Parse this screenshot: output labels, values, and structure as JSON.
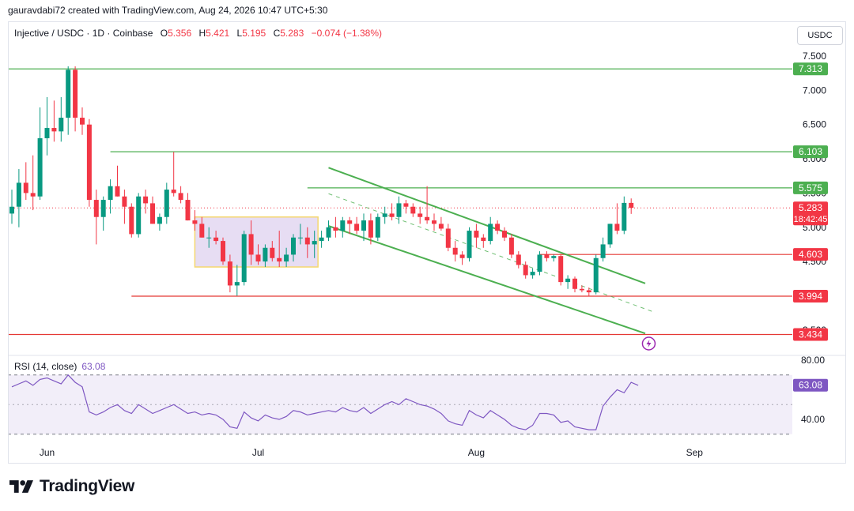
{
  "header": {
    "attribution": "gauravdabi72 created with TradingView.com, Aug 24, 2026 10:47 UTC+5:30"
  },
  "legend": {
    "symbol": "Injective / USDC · 1D · Coinbase",
    "open_label": "O",
    "open": "5.356",
    "high_label": "H",
    "high": "5.421",
    "low_label": "L",
    "low": "5.195",
    "close_label": "C",
    "close": "5.283",
    "change": "−0.074 (−1.38%)"
  },
  "currency_button": "USDC",
  "rsi_legend": {
    "label": "RSI (14, close)",
    "value": "63.08"
  },
  "footer": {
    "brand": "TradingView"
  },
  "colors": {
    "up": "#089981",
    "down": "#f23645",
    "green_line": "#4caf50",
    "red_line": "#e53935",
    "rsi": "#7e57c2",
    "range_fill": "#e1d5f0",
    "range_border": "#f5d76e"
  },
  "chart_data": {
    "type": "candlestick",
    "price_axis": {
      "ticks": [
        "7.500",
        "7.000",
        "6.500",
        "6.000",
        "5.500",
        "5.000",
        "4.500",
        "4.000",
        "3.500"
      ],
      "ylim": [
        3.25,
        7.65
      ]
    },
    "x_axis": {
      "labels": [
        {
          "label": "Jun",
          "day": 5
        },
        {
          "label": "Jul",
          "day": 35
        },
        {
          "label": "Aug",
          "day": 66
        },
        {
          "label": "Sep",
          "day": 97
        }
      ]
    },
    "price_labels": [
      {
        "value": "7.313",
        "color": "#4caf50"
      },
      {
        "value": "6.103",
        "color": "#4caf50"
      },
      {
        "value": "5.575",
        "color": "#4caf50"
      },
      {
        "value": "5.283",
        "time": "18:42:45",
        "color": "#f23645"
      },
      {
        "value": "4.603",
        "color": "#f23645"
      },
      {
        "value": "3.994",
        "color": "#f23645"
      },
      {
        "value": "3.434",
        "color": "#f23645"
      }
    ],
    "horizontal_levels": [
      {
        "price": 7.313,
        "from_day": -1,
        "color": "#4caf50"
      },
      {
        "price": 6.103,
        "from_day": 14,
        "color": "#4caf50"
      },
      {
        "price": 5.575,
        "from_day": 42,
        "color": "#4caf50"
      },
      {
        "price": 4.603,
        "from_day": 75,
        "color": "#e53935"
      },
      {
        "price": 3.994,
        "from_day": 17,
        "color": "#e53935"
      },
      {
        "price": 3.434,
        "from_day": -8,
        "color": "#e53935"
      }
    ],
    "range_box": {
      "from_day": 26,
      "to_day": 43.5,
      "top": 5.15,
      "bottom": 4.42
    },
    "channel": [
      {
        "x1_day": 45,
        "y1": 5.87,
        "x2_day": 90,
        "y2": 4.18,
        "dashed": false
      },
      {
        "x1_day": 45,
        "y1": 5.49,
        "x2_day": 91,
        "y2": 3.77,
        "dashed": true
      },
      {
        "x1_day": 45,
        "y1": 5.02,
        "x2_day": 90,
        "y2": 3.45,
        "dashed": false
      }
    ],
    "candles": [
      {
        "o": 5.2,
        "h": 5.55,
        "l": 5.05,
        "c": 5.3
      },
      {
        "o": 5.3,
        "h": 5.85,
        "l": 5.0,
        "c": 5.65
      },
      {
        "o": 5.65,
        "h": 5.95,
        "l": 5.4,
        "c": 5.5
      },
      {
        "o": 5.5,
        "h": 6.05,
        "l": 5.25,
        "c": 5.45
      },
      {
        "o": 5.45,
        "h": 6.75,
        "l": 5.4,
        "c": 6.3
      },
      {
        "o": 6.3,
        "h": 6.9,
        "l": 6.05,
        "c": 6.45
      },
      {
        "o": 6.45,
        "h": 6.85,
        "l": 6.25,
        "c": 6.4
      },
      {
        "o": 6.4,
        "h": 6.9,
        "l": 6.25,
        "c": 6.6
      },
      {
        "o": 6.6,
        "h": 7.35,
        "l": 6.35,
        "c": 7.3
      },
      {
        "o": 7.3,
        "h": 7.35,
        "l": 6.4,
        "c": 6.6
      },
      {
        "o": 6.6,
        "h": 6.75,
        "l": 6.35,
        "c": 6.5
      },
      {
        "o": 6.5,
        "h": 6.58,
        "l": 5.3,
        "c": 5.4
      },
      {
        "o": 5.4,
        "h": 5.55,
        "l": 4.75,
        "c": 5.15
      },
      {
        "o": 5.15,
        "h": 5.45,
        "l": 4.95,
        "c": 5.4
      },
      {
        "o": 5.4,
        "h": 5.7,
        "l": 5.2,
        "c": 5.6
      },
      {
        "o": 5.6,
        "h": 5.9,
        "l": 5.45,
        "c": 5.45
      },
      {
        "o": 5.45,
        "h": 5.55,
        "l": 5.05,
        "c": 5.3
      },
      {
        "o": 5.3,
        "h": 5.35,
        "l": 4.85,
        "c": 4.9
      },
      {
        "o": 4.9,
        "h": 5.5,
        "l": 4.85,
        "c": 5.45
      },
      {
        "o": 5.45,
        "h": 5.55,
        "l": 5.2,
        "c": 5.35
      },
      {
        "o": 5.35,
        "h": 5.45,
        "l": 5.05,
        "c": 5.05
      },
      {
        "o": 5.05,
        "h": 5.2,
        "l": 4.95,
        "c": 5.15
      },
      {
        "o": 5.15,
        "h": 5.65,
        "l": 5.05,
        "c": 5.55
      },
      {
        "o": 5.55,
        "h": 6.1,
        "l": 5.45,
        "c": 5.5
      },
      {
        "o": 5.5,
        "h": 5.6,
        "l": 5.35,
        "c": 5.4
      },
      {
        "o": 5.4,
        "h": 5.5,
        "l": 5.1,
        "c": 5.1
      },
      {
        "o": 5.1,
        "h": 5.25,
        "l": 4.95,
        "c": 5.05
      },
      {
        "o": 5.05,
        "h": 5.15,
        "l": 4.85,
        "c": 4.85
      },
      {
        "o": 4.85,
        "h": 5.0,
        "l": 4.7,
        "c": 4.85
      },
      {
        "o": 4.85,
        "h": 4.95,
        "l": 4.75,
        "c": 4.8
      },
      {
        "o": 4.8,
        "h": 4.85,
        "l": 4.45,
        "c": 4.5
      },
      {
        "o": 4.5,
        "h": 4.6,
        "l": 4.05,
        "c": 4.15
      },
      {
        "o": 4.15,
        "h": 4.45,
        "l": 4.0,
        "c": 4.2
      },
      {
        "o": 4.2,
        "h": 4.95,
        "l": 4.15,
        "c": 4.9
      },
      {
        "o": 4.9,
        "h": 5.1,
        "l": 4.45,
        "c": 4.6
      },
      {
        "o": 4.6,
        "h": 4.75,
        "l": 4.45,
        "c": 4.5
      },
      {
        "o": 4.5,
        "h": 4.75,
        "l": 4.42,
        "c": 4.7
      },
      {
        "o": 4.7,
        "h": 4.8,
        "l": 4.5,
        "c": 4.55
      },
      {
        "o": 4.55,
        "h": 4.95,
        "l": 4.42,
        "c": 4.5
      },
      {
        "o": 4.5,
        "h": 4.7,
        "l": 4.42,
        "c": 4.6
      },
      {
        "o": 4.6,
        "h": 4.9,
        "l": 4.5,
        "c": 4.85
      },
      {
        "o": 4.85,
        "h": 5.05,
        "l": 4.75,
        "c": 4.85
      },
      {
        "o": 4.85,
        "h": 5.0,
        "l": 4.55,
        "c": 4.75
      },
      {
        "o": 4.75,
        "h": 4.95,
        "l": 4.55,
        "c": 4.8
      },
      {
        "o": 4.8,
        "h": 4.95,
        "l": 4.7,
        "c": 4.85
      },
      {
        "o": 4.85,
        "h": 5.1,
        "l": 4.8,
        "c": 5.0
      },
      {
        "o": 5.0,
        "h": 5.15,
        "l": 4.85,
        "c": 4.95
      },
      {
        "o": 4.95,
        "h": 5.15,
        "l": 4.85,
        "c": 5.1
      },
      {
        "o": 5.1,
        "h": 5.15,
        "l": 4.9,
        "c": 5.05
      },
      {
        "o": 5.05,
        "h": 5.15,
        "l": 4.9,
        "c": 4.95
      },
      {
        "o": 4.95,
        "h": 5.2,
        "l": 4.8,
        "c": 5.1
      },
      {
        "o": 5.1,
        "h": 5.2,
        "l": 4.75,
        "c": 4.85
      },
      {
        "o": 4.85,
        "h": 5.2,
        "l": 4.8,
        "c": 5.15
      },
      {
        "o": 5.15,
        "h": 5.3,
        "l": 5.05,
        "c": 5.2
      },
      {
        "o": 5.2,
        "h": 5.35,
        "l": 5.1,
        "c": 5.15
      },
      {
        "o": 5.15,
        "h": 5.45,
        "l": 5.05,
        "c": 5.35
      },
      {
        "o": 5.35,
        "h": 5.4,
        "l": 5.2,
        "c": 5.3
      },
      {
        "o": 5.3,
        "h": 5.35,
        "l": 5.15,
        "c": 5.2
      },
      {
        "o": 5.2,
        "h": 5.3,
        "l": 5.05,
        "c": 5.15
      },
      {
        "o": 5.15,
        "h": 5.6,
        "l": 5.05,
        "c": 5.1
      },
      {
        "o": 5.1,
        "h": 5.2,
        "l": 4.95,
        "c": 5.05
      },
      {
        "o": 5.05,
        "h": 5.15,
        "l": 4.95,
        "c": 4.98
      },
      {
        "o": 4.98,
        "h": 5.05,
        "l": 4.65,
        "c": 4.7
      },
      {
        "o": 4.7,
        "h": 4.8,
        "l": 4.5,
        "c": 4.6
      },
      {
        "o": 4.6,
        "h": 4.65,
        "l": 4.45,
        "c": 4.55
      },
      {
        "o": 4.55,
        "h": 5.0,
        "l": 4.5,
        "c": 4.95
      },
      {
        "o": 4.95,
        "h": 5.05,
        "l": 4.7,
        "c": 4.85
      },
      {
        "o": 4.85,
        "h": 4.9,
        "l": 4.7,
        "c": 4.8
      },
      {
        "o": 4.8,
        "h": 5.15,
        "l": 4.75,
        "c": 5.05
      },
      {
        "o": 5.05,
        "h": 5.1,
        "l": 4.9,
        "c": 4.95
      },
      {
        "o": 4.95,
        "h": 5.0,
        "l": 4.8,
        "c": 4.85
      },
      {
        "o": 4.85,
        "h": 4.9,
        "l": 4.55,
        "c": 4.6
      },
      {
        "o": 4.6,
        "h": 4.65,
        "l": 4.4,
        "c": 4.45
      },
      {
        "o": 4.45,
        "h": 4.5,
        "l": 4.25,
        "c": 4.3
      },
      {
        "o": 4.3,
        "h": 4.4,
        "l": 4.25,
        "c": 4.35
      },
      {
        "o": 4.35,
        "h": 4.65,
        "l": 4.3,
        "c": 4.6
      },
      {
        "o": 4.6,
        "h": 4.65,
        "l": 4.5,
        "c": 4.55
      },
      {
        "o": 4.55,
        "h": 4.6,
        "l": 4.5,
        "c": 4.58
      },
      {
        "o": 4.58,
        "h": 4.6,
        "l": 4.15,
        "c": 4.2
      },
      {
        "o": 4.2,
        "h": 4.3,
        "l": 4.1,
        "c": 4.25
      },
      {
        "o": 4.25,
        "h": 4.28,
        "l": 4.05,
        "c": 4.1
      },
      {
        "o": 4.1,
        "h": 4.15,
        "l": 4.05,
        "c": 4.08
      },
      {
        "o": 4.08,
        "h": 4.12,
        "l": 3.99,
        "c": 4.05
      },
      {
        "o": 4.05,
        "h": 4.6,
        "l": 4.02,
        "c": 4.55
      },
      {
        "o": 4.55,
        "h": 4.85,
        "l": 4.5,
        "c": 4.75
      },
      {
        "o": 4.75,
        "h": 5.05,
        "l": 4.7,
        "c": 5.05
      },
      {
        "o": 5.05,
        "h": 5.35,
        "l": 4.9,
        "c": 4.95
      },
      {
        "o": 4.95,
        "h": 5.45,
        "l": 4.9,
        "c": 5.356
      },
      {
        "o": 5.356,
        "h": 5.421,
        "l": 5.195,
        "c": 5.283
      }
    ],
    "rsi": {
      "name": "RSI (14, close)",
      "axis_ticks": [
        "80.00",
        "40.00"
      ],
      "ylim": [
        28,
        86
      ],
      "band": [
        70,
        30
      ],
      "midline": 50,
      "last": "63.08",
      "values": [
        62,
        64,
        66,
        63,
        67,
        68,
        66,
        64,
        70,
        65,
        62,
        45,
        43,
        45,
        48,
        50,
        46,
        44,
        50,
        47,
        44,
        46,
        48,
        50,
        47,
        44,
        45,
        43,
        44,
        43,
        40,
        35,
        34,
        45,
        41,
        39,
        43,
        41,
        40,
        42,
        46,
        45,
        43,
        44,
        45,
        46,
        45,
        48,
        46,
        45,
        48,
        44,
        47,
        50,
        52,
        50,
        54,
        52,
        50,
        49,
        47,
        44,
        39,
        37,
        36,
        46,
        43,
        41,
        46,
        43,
        40,
        36,
        34,
        33,
        36,
        44,
        44,
        43,
        38,
        39,
        35,
        34,
        33,
        33,
        49,
        55,
        60,
        58,
        65,
        63
      ]
    }
  }
}
